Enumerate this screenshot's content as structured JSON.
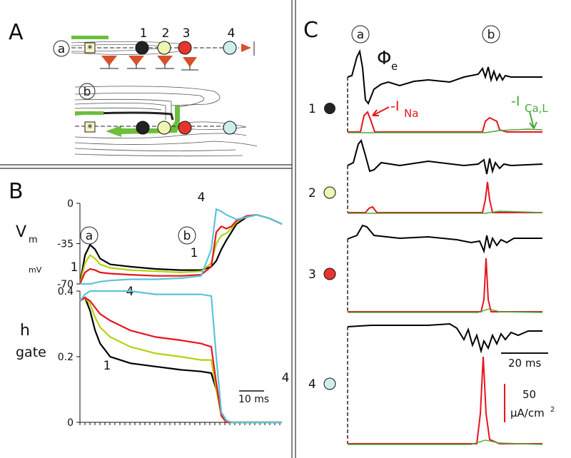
{
  "panel_a": {
    "label": "A",
    "rows": [
      "a",
      "b"
    ],
    "sites": [
      "1",
      "2",
      "3",
      "4"
    ],
    "stim": "*"
  },
  "panel_c": {
    "label": "C",
    "columns": [
      "a",
      "b"
    ],
    "phi": "Φ",
    "phi_sub": "e",
    "rows": [
      "1",
      "2",
      "3",
      "4"
    ],
    "ina": "-I",
    "ina_sub": "Na",
    "ica": "-I",
    "ica_sub": "Ca,L",
    "time_bar": "20 ms",
    "current_bar": "50",
    "current_unit": "μA/cm",
    "current_unit_sup": "2"
  },
  "panel_b": {
    "label": "B"
  },
  "chart_data": [
    {
      "type": "line",
      "ylabel": "V",
      "ylabel_sub": "m",
      "yunit": "mV",
      "ylim": [
        -70,
        0
      ],
      "yticks": [
        0,
        -35,
        -70
      ],
      "xlim": [
        0,
        80
      ],
      "x": [
        0,
        2,
        4,
        6,
        8,
        12,
        20,
        30,
        40,
        48,
        52,
        54,
        56,
        58,
        60,
        62,
        66,
        70,
        75,
        80
      ],
      "annotations": [
        "a",
        "b",
        "1",
        "4",
        "4",
        "1"
      ],
      "series": [
        {
          "name": "1",
          "color": "#000000",
          "values": [
            -70,
            -45,
            -36,
            -40,
            -48,
            -53,
            -55,
            -57,
            -58,
            -58,
            -55,
            -50,
            -40,
            -32,
            -25,
            -18,
            -12,
            -10,
            -13,
            -18
          ]
        },
        {
          "name": "2",
          "color": "#b5d20f",
          "values": [
            -70,
            -52,
            -45,
            -48,
            -53,
            -56,
            -58,
            -59,
            -60,
            -59,
            -52,
            -35,
            -28,
            -26,
            -22,
            -16,
            -11,
            -10,
            -13,
            -18
          ]
        },
        {
          "name": "3",
          "color": "#e8141c",
          "values": [
            -70,
            -60,
            -57,
            -58,
            -60,
            -61,
            -62,
            -63,
            -63,
            -62,
            -55,
            -25,
            -20,
            -22,
            -20,
            -15,
            -11,
            -10,
            -13,
            -18
          ]
        },
        {
          "name": "4",
          "color": "#5bc4dc",
          "values": [
            -70,
            -70,
            -70,
            -69,
            -68,
            -67,
            -66,
            -66,
            -65,
            -63,
            -40,
            -5,
            -7,
            -10,
            -12,
            -14,
            -12,
            -10,
            -13,
            -18
          ]
        }
      ]
    },
    {
      "type": "line",
      "ylabel": "h",
      "ylabel2": "gate",
      "ylim": [
        0,
        0.4
      ],
      "yticks": [
        0.4,
        0.2,
        0
      ],
      "xlim": [
        0,
        80
      ],
      "time_bar": "10 ms",
      "x": [
        0,
        2,
        4,
        6,
        8,
        12,
        20,
        30,
        40,
        48,
        52,
        54,
        56,
        58,
        60,
        62,
        66,
        70,
        75,
        80
      ],
      "annotations": [
        "1",
        "4"
      ],
      "series": [
        {
          "name": "1",
          "color": "#000000",
          "values": [
            0.37,
            0.38,
            0.34,
            0.28,
            0.24,
            0.2,
            0.18,
            0.17,
            0.16,
            0.155,
            0.15,
            0.1,
            0.03,
            0.005,
            0,
            0,
            0,
            0,
            0,
            0
          ]
        },
        {
          "name": "2",
          "color": "#b5d20f",
          "values": [
            0.37,
            0.38,
            0.36,
            0.32,
            0.29,
            0.26,
            0.23,
            0.21,
            0.2,
            0.19,
            0.19,
            0.1,
            0.02,
            0,
            0,
            0,
            0,
            0,
            0,
            0
          ]
        },
        {
          "name": "3",
          "color": "#e8141c",
          "values": [
            0.37,
            0.38,
            0.37,
            0.35,
            0.33,
            0.31,
            0.28,
            0.26,
            0.25,
            0.24,
            0.23,
            0.12,
            0.02,
            0,
            0,
            0,
            0,
            0,
            0,
            0
          ]
        },
        {
          "name": "4",
          "color": "#5bc4dc",
          "values": [
            0.37,
            0.39,
            0.4,
            0.4,
            0.4,
            0.4,
            0.4,
            0.39,
            0.39,
            0.39,
            0.385,
            0.2,
            0.03,
            0.005,
            0,
            0,
            0,
            0,
            0,
            0
          ]
        }
      ]
    }
  ]
}
